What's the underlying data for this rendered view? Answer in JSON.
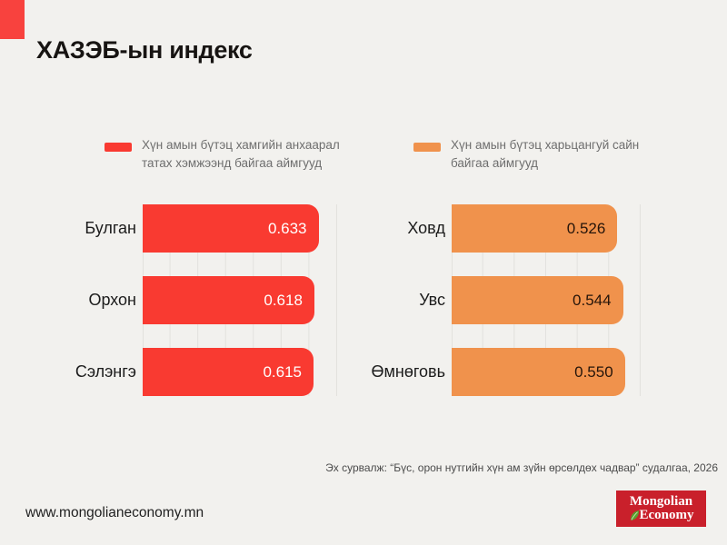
{
  "page": {
    "title": "ХАЗЭБ-ын индекс",
    "background_color": "#F2F1EE",
    "accent_square_color": "#F8423E",
    "source_note": "Эх сурвалж: “Бүс, орон нутгийн хүн ам зүйн өрсөлдөх чадвар” судалгаа, 2026",
    "footer_url": "www.mongolianeconomy.mn",
    "logo": {
      "line1": "Mongolian",
      "line2": "Economy",
      "bg_color": "#C9202B",
      "leaf_color": "#5A9E2F"
    }
  },
  "chart_data": [
    {
      "type": "bar",
      "orientation": "horizontal",
      "legend": "Хүн амын бүтэц хамгийн анхаарал татах хэмжээнд байгаа аймгууд",
      "bar_color": "#F93A31",
      "value_text_color": "#FFFFFF",
      "categories": [
        "Булган",
        "Орхон",
        "Сэлэнгэ"
      ],
      "values": [
        0.633,
        0.618,
        0.615
      ],
      "value_labels": [
        "0.633",
        "0.618",
        "0.615"
      ],
      "xlim": [
        0,
        0.7
      ],
      "grid_step": 0.1,
      "grid": true,
      "legend_position": "top"
    },
    {
      "type": "bar",
      "orientation": "horizontal",
      "legend": "Хүн амын бүтэц харьцангуй сайн байгаа аймгууд",
      "bar_color": "#F0924C",
      "value_text_color": "#26150A",
      "categories": [
        "Ховд",
        "Увс",
        "Өмнөговь"
      ],
      "values": [
        0.526,
        0.544,
        0.55
      ],
      "value_labels": [
        "0.526",
        "0.544",
        "0.550"
      ],
      "xlim": [
        0,
        0.6
      ],
      "grid_step": 0.1,
      "grid": true,
      "legend_position": "top"
    }
  ]
}
